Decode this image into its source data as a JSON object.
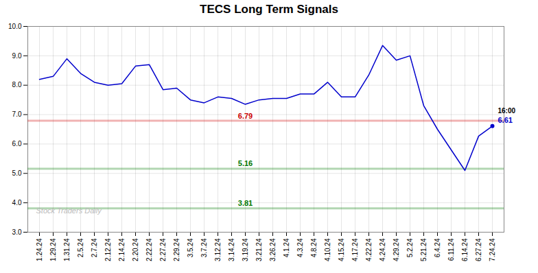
{
  "chart_data": {
    "type": "line",
    "title": "TECS Long Term Signals",
    "categories": [
      "1.24.24",
      "1.29.24",
      "1.31.24",
      "2.5.24",
      "2.7.24",
      "2.12.24",
      "2.14.24",
      "2.20.24",
      "2.22.24",
      "2.27.24",
      "2.29.24",
      "3.5.24",
      "3.7.24",
      "3.12.24",
      "3.14.24",
      "3.19.24",
      "3.21.24",
      "3.26.24",
      "4.1.24",
      "4.3.24",
      "4.8.24",
      "4.10.24",
      "4.15.24",
      "4.17.24",
      "4.22.24",
      "4.24.24",
      "4.29.24",
      "5.2.24",
      "5.21.24",
      "6.4.24",
      "6.11.24",
      "6.14.24",
      "6.27.24",
      "7.24.24"
    ],
    "values": [
      8.2,
      8.3,
      8.9,
      8.4,
      8.1,
      8.0,
      8.05,
      8.65,
      8.7,
      7.85,
      7.9,
      7.5,
      7.4,
      7.6,
      7.55,
      7.35,
      7.5,
      7.55,
      7.55,
      7.7,
      7.7,
      8.1,
      7.6,
      7.6,
      8.35,
      9.35,
      8.85,
      9.0,
      7.3,
      6.5,
      5.8,
      5.1,
      6.27,
      6.61
    ],
    "color": "#0000cc",
    "marker": "last",
    "hlines": [
      {
        "value": 6.79,
        "color": "#cc0000"
      },
      {
        "value": 5.16,
        "color": "#007700"
      },
      {
        "value": 3.81,
        "color": "#007700"
      }
    ],
    "annotations": [
      {
        "text": "16:00",
        "x": "7.24.24",
        "y": 6.61
      },
      {
        "text": "6.61",
        "x": "7.24.24",
        "y": 6.61,
        "color": "#0000cc"
      },
      {
        "text": "Stock Traders Daily"
      }
    ],
    "ylim": [
      3,
      10
    ],
    "yticks": [
      3,
      4,
      5,
      6,
      7,
      8,
      9,
      10
    ],
    "grid": true
  }
}
